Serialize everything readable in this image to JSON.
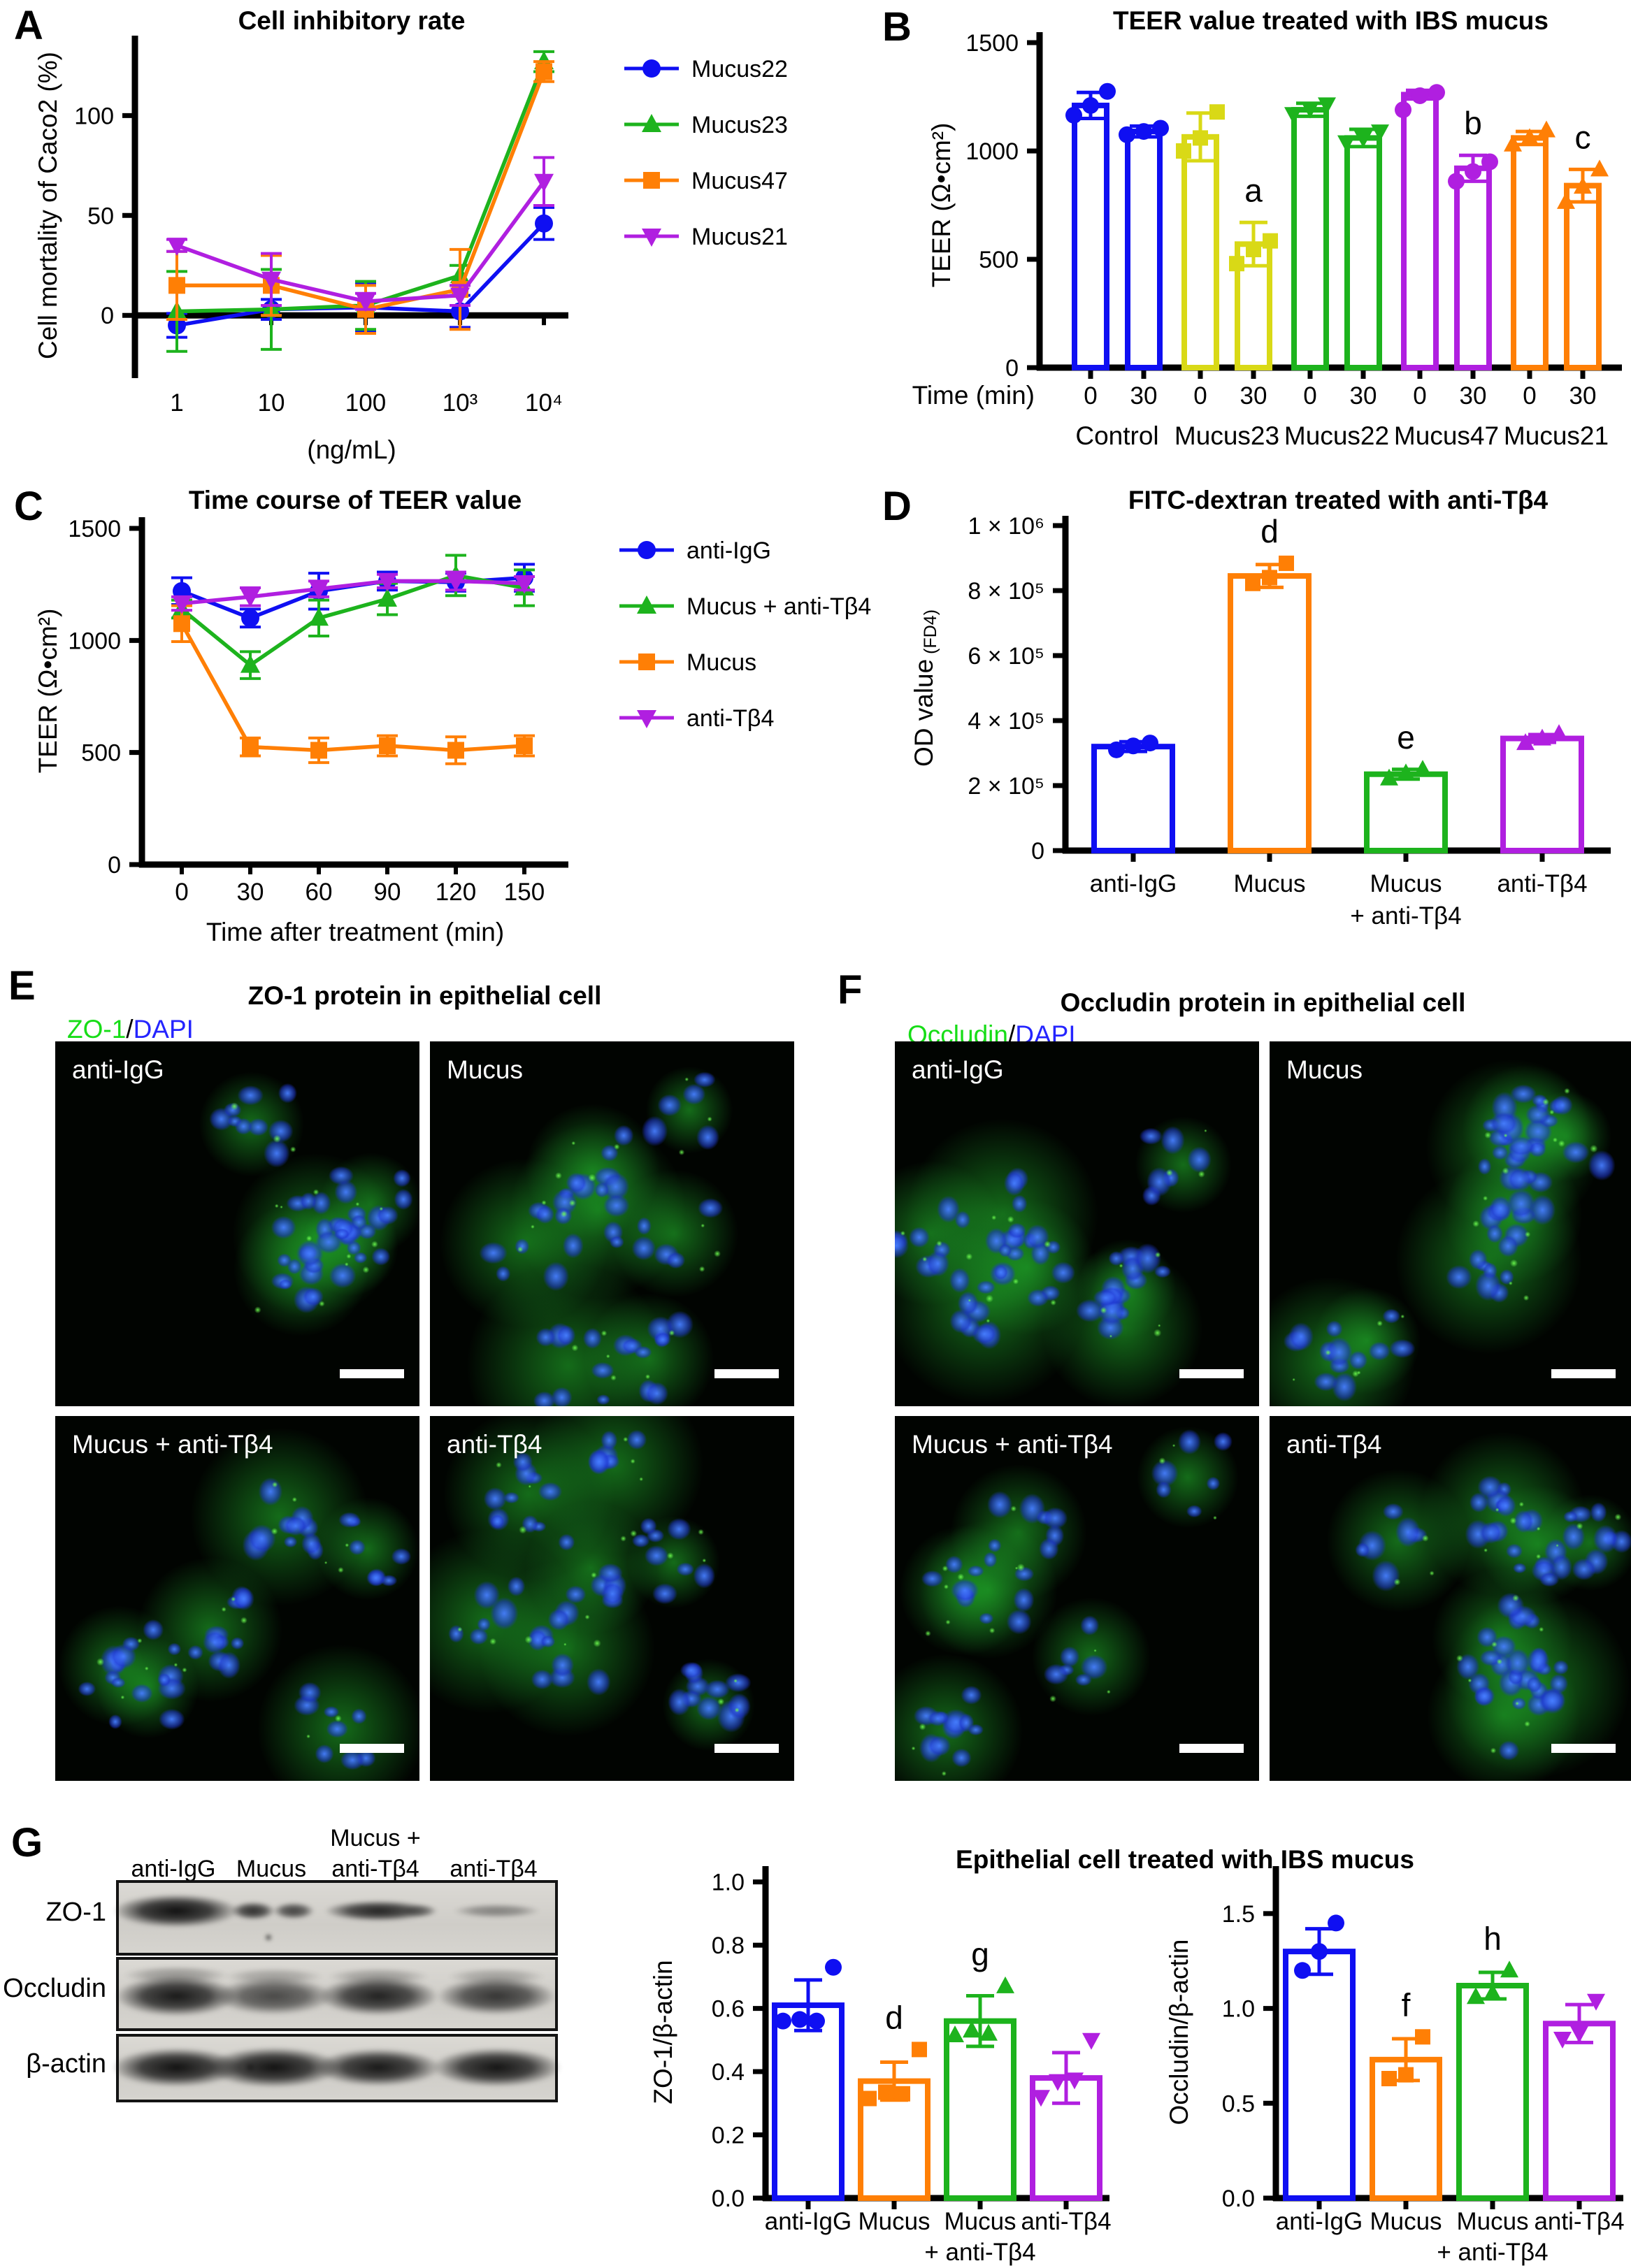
{
  "palette": {
    "blue": "#0f0ff2",
    "green": "#1db31d",
    "orange": "#ff7f05",
    "magenta": "#b01fe0",
    "yellow": "#d9d916",
    "stain_green": "#17dd17",
    "stain_blue": "#2424ff",
    "axis": "#000000",
    "micro_bg": "#010401"
  },
  "panels": {
    "A": {
      "letter": "A"
    },
    "B": {
      "letter": "B"
    },
    "C": {
      "letter": "C"
    },
    "D": {
      "letter": "D"
    },
    "E": {
      "letter": "E",
      "title": "ZO-1 protein in epithelial cell",
      "stain_green": "ZO-1",
      "stain_sep": "/",
      "stain_blue": "DAPI",
      "tiles": [
        "anti-IgG",
        "Mucus",
        "Mucus + anti-Tβ4",
        "anti-Tβ4"
      ]
    },
    "F": {
      "letter": "F",
      "title": "Occludin protein in epithelial cell",
      "stain_green": "Occludin",
      "stain_sep": "/",
      "stain_blue": "DAPI",
      "tiles": [
        "anti-IgG",
        "Mucus",
        "Mucus + anti-Tβ4",
        "anti-Tβ4"
      ]
    },
    "G": {
      "letter": "G",
      "title": "Epithelial cell treated with IBS mucus",
      "lanes": [
        [
          "anti-IgG"
        ],
        [
          "Mucus"
        ],
        [
          "Mucus +",
          "anti-Tβ4"
        ],
        [
          "anti-Tβ4"
        ]
      ],
      "rows": [
        "ZO-1",
        "Occludin",
        "β-actin"
      ]
    }
  },
  "chart_data": [
    {
      "id": "A",
      "type": "line",
      "title": "Cell inhibitory rate",
      "xlabel": "(ng/mL)",
      "ylabel": "Cell mortality of Caco2 (%)",
      "categories": [
        "1",
        "10",
        "100",
        "10³",
        "10⁴"
      ],
      "yticks": [
        0,
        50,
        100
      ],
      "ylim": [
        -30,
        140
      ],
      "xaxis_at": 0,
      "legend": true,
      "series": [
        {
          "name": "Mucus22",
          "color": "blue",
          "marker": "circle",
          "values": [
            -5,
            3,
            4,
            2,
            46
          ],
          "errors": [
            6,
            5,
            12,
            8,
            8
          ]
        },
        {
          "name": "Mucus23",
          "color": "green",
          "marker": "triangle-up",
          "values": [
            2,
            3,
            5,
            20,
            127
          ],
          "errors": [
            20,
            20,
            12,
            5,
            5
          ]
        },
        {
          "name": "Mucus47",
          "color": "orange",
          "marker": "square",
          "values": [
            15,
            15,
            3,
            13,
            122
          ],
          "errors": [
            17,
            15,
            12,
            20,
            5
          ]
        },
        {
          "name": "Mucus21",
          "color": "magenta",
          "marker": "triangle-down",
          "values": [
            35,
            18,
            7,
            10,
            67
          ],
          "errors": [
            3,
            13,
            4,
            5,
            12
          ]
        }
      ]
    },
    {
      "id": "B",
      "type": "bar-grouped",
      "title": "TEER value treated with IBS mucus",
      "ylabel": "TEER (Ω•cm²)",
      "xlabel_row": "Time (min)",
      "yticks": [
        0,
        500,
        1000,
        1500
      ],
      "ylim": [
        0,
        1500
      ],
      "groups": [
        {
          "label": "Control",
          "color": "blue",
          "marker": "circle",
          "bars": [
            {
              "tick": "0",
              "value": 1210,
              "error": 60,
              "points": [
                1165,
                1210,
                1275
              ]
            },
            {
              "tick": "30",
              "value": 1090,
              "error": 25,
              "points": [
                1075,
                1090,
                1105
              ]
            }
          ]
        },
        {
          "label": "Mucus23",
          "color": "yellow",
          "marker": "square",
          "bars": [
            {
              "tick": "0",
              "value": 1065,
              "error": 110,
              "points": [
                1000,
                1060,
                1180
              ]
            },
            {
              "tick": "30",
              "value": 570,
              "error": 100,
              "points": [
                480,
                545,
                585
              ],
              "sig": "a"
            }
          ]
        },
        {
          "label": "Mucus22",
          "color": "green",
          "marker": "triangle-down",
          "bars": [
            {
              "tick": "0",
              "value": 1190,
              "error": 30,
              "points": [
                1170,
                1195,
                1215
              ]
            },
            {
              "tick": "30",
              "value": 1060,
              "error": 40,
              "points": [
                1040,
                1060,
                1090
              ]
            }
          ]
        },
        {
          "label": "Mucus47",
          "color": "magenta",
          "marker": "circle",
          "bars": [
            {
              "tick": "0",
              "value": 1260,
              "error": 20,
              "points": [
                1190,
                1255,
                1270
              ]
            },
            {
              "tick": "30",
              "value": 920,
              "error": 60,
              "points": [
                860,
                905,
                950
              ],
              "sig": "b"
            }
          ]
        },
        {
          "label": "Mucus21",
          "color": "orange",
          "marker": "triangle-up",
          "bars": [
            {
              "tick": "0",
              "value": 1060,
              "error": 30,
              "points": [
                1030,
                1060,
                1095
              ]
            },
            {
              "tick": "30",
              "value": 840,
              "error": 75,
              "points": [
                765,
                835,
                915
              ],
              "sig": "c"
            }
          ]
        }
      ]
    },
    {
      "id": "C",
      "type": "line",
      "title": "Time course of TEER value",
      "xlabel": "Time after treatment (min)",
      "ylabel": "TEER (Ω•cm²)",
      "categories": [
        "0",
        "30",
        "60",
        "90",
        "120",
        "150"
      ],
      "yticks": [
        0,
        500,
        1000,
        1500
      ],
      "ylim": [
        0,
        1550
      ],
      "xaxis_at": 0,
      "legend": true,
      "series": [
        {
          "name": "anti-IgG",
          "color": "blue",
          "marker": "circle",
          "values": [
            1220,
            1100,
            1220,
            1265,
            1260,
            1280
          ],
          "errors": [
            60,
            40,
            80,
            40,
            40,
            60
          ]
        },
        {
          "name": "Mucus + anti-Tβ4",
          "color": "green",
          "marker": "triangle-up",
          "values": [
            1140,
            890,
            1100,
            1185,
            1290,
            1235
          ],
          "errors": [
            40,
            60,
            80,
            70,
            90,
            80
          ]
        },
        {
          "name": "Mucus",
          "color": "orange",
          "marker": "square",
          "values": [
            1075,
            525,
            510,
            530,
            510,
            530
          ],
          "errors": [
            80,
            40,
            55,
            45,
            60,
            45
          ]
        },
        {
          "name": "anti-Tβ4",
          "color": "magenta",
          "marker": "triangle-down",
          "values": [
            1165,
            1195,
            1230,
            1265,
            1265,
            1255
          ],
          "errors": [
            30,
            40,
            35,
            30,
            40,
            30
          ]
        }
      ]
    },
    {
      "id": "D",
      "type": "bar",
      "title": "FITC-dextran treated with anti-Tβ4",
      "ylabel": "OD value",
      "ylabel_sub": "(FD4)",
      "yticks": [
        0,
        200000,
        400000,
        600000,
        800000,
        1000000
      ],
      "ytick_labels": [
        "0",
        "2 × 10⁵",
        "4 × 10⁵",
        "6 × 10⁵",
        "8 × 10⁵",
        "1 × 10⁶"
      ],
      "ylim": [
        0,
        1000000
      ],
      "bars": [
        {
          "label": "anti-IgG",
          "color": "blue",
          "marker": "circle",
          "value": 320000,
          "error": 15000,
          "points": [
            310000,
            322000,
            331000
          ]
        },
        {
          "label": "Mucus",
          "color": "orange",
          "marker": "square",
          "value": 845000,
          "error": 35000,
          "points": [
            822000,
            840000,
            884000
          ],
          "sig": "d"
        },
        {
          "label": "Mucus",
          "label2": "+ anti-Tβ4",
          "color": "green",
          "marker": "triangle-up",
          "value": 235000,
          "error": 15000,
          "points": [
            222000,
            238000,
            249000
          ],
          "sig": "e"
        },
        {
          "label": "anti-Tβ4",
          "color": "magenta",
          "marker": "triangle-up",
          "value": 345000,
          "error": 12000,
          "points": [
            331000,
            345000,
            359000
          ]
        }
      ]
    },
    {
      "id": "G1",
      "type": "bar",
      "title": "",
      "ylabel": "ZO-1/β-actin",
      "yticks": [
        0,
        0.2,
        0.4,
        0.6,
        0.8,
        1.0
      ],
      "ytick_labels": [
        "0.0",
        "0.2",
        "0.4",
        "0.6",
        "0.8",
        "1.0"
      ],
      "ylim": [
        0,
        1.05
      ],
      "bars": [
        {
          "label": "anti-IgG",
          "color": "blue",
          "marker": "circle",
          "value": 0.61,
          "error": 0.08,
          "points": [
            0.56,
            0.565,
            0.56,
            0.73
          ]
        },
        {
          "label": "Mucus",
          "color": "orange",
          "marker": "square",
          "value": 0.37,
          "error": 0.06,
          "points": [
            0.315,
            0.335,
            0.33,
            0.47
          ],
          "sig": "d"
        },
        {
          "label": "Mucus",
          "label2": "+ anti-Tβ4",
          "color": "green",
          "marker": "triangle-up",
          "value": 0.56,
          "error": 0.08,
          "points": [
            0.515,
            0.53,
            0.52,
            0.67
          ],
          "sig": "g"
        },
        {
          "label": "anti-Tβ4",
          "color": "magenta",
          "marker": "triangle-down",
          "value": 0.38,
          "error": 0.08,
          "points": [
            0.32,
            0.37,
            0.375,
            0.5
          ]
        }
      ]
    },
    {
      "id": "G2",
      "type": "bar",
      "title": "",
      "ylabel": "Occludin/β-actin",
      "yticks": [
        0,
        0.5,
        1.0,
        1.5
      ],
      "ytick_labels": [
        "0.0",
        "0.5",
        "1.0",
        "1.5"
      ],
      "ylim": [
        0,
        1.75
      ],
      "bars": [
        {
          "label": "anti-IgG",
          "color": "blue",
          "marker": "circle",
          "value": 1.3,
          "error": 0.12,
          "points": [
            1.2,
            1.3,
            1.45
          ]
        },
        {
          "label": "Mucus",
          "color": "orange",
          "marker": "square",
          "value": 0.73,
          "error": 0.11,
          "points": [
            0.63,
            0.65,
            0.85
          ],
          "sig": "f"
        },
        {
          "label": "Mucus",
          "label2": "+ anti-Tβ4",
          "color": "green",
          "marker": "triangle-up",
          "value": 1.12,
          "error": 0.07,
          "points": [
            1.06,
            1.08,
            1.2
          ],
          "sig": "h"
        },
        {
          "label": "anti-Tβ4",
          "color": "magenta",
          "marker": "triangle-down",
          "value": 0.92,
          "error": 0.1,
          "points": [
            0.84,
            0.87,
            1.04
          ]
        }
      ]
    }
  ]
}
